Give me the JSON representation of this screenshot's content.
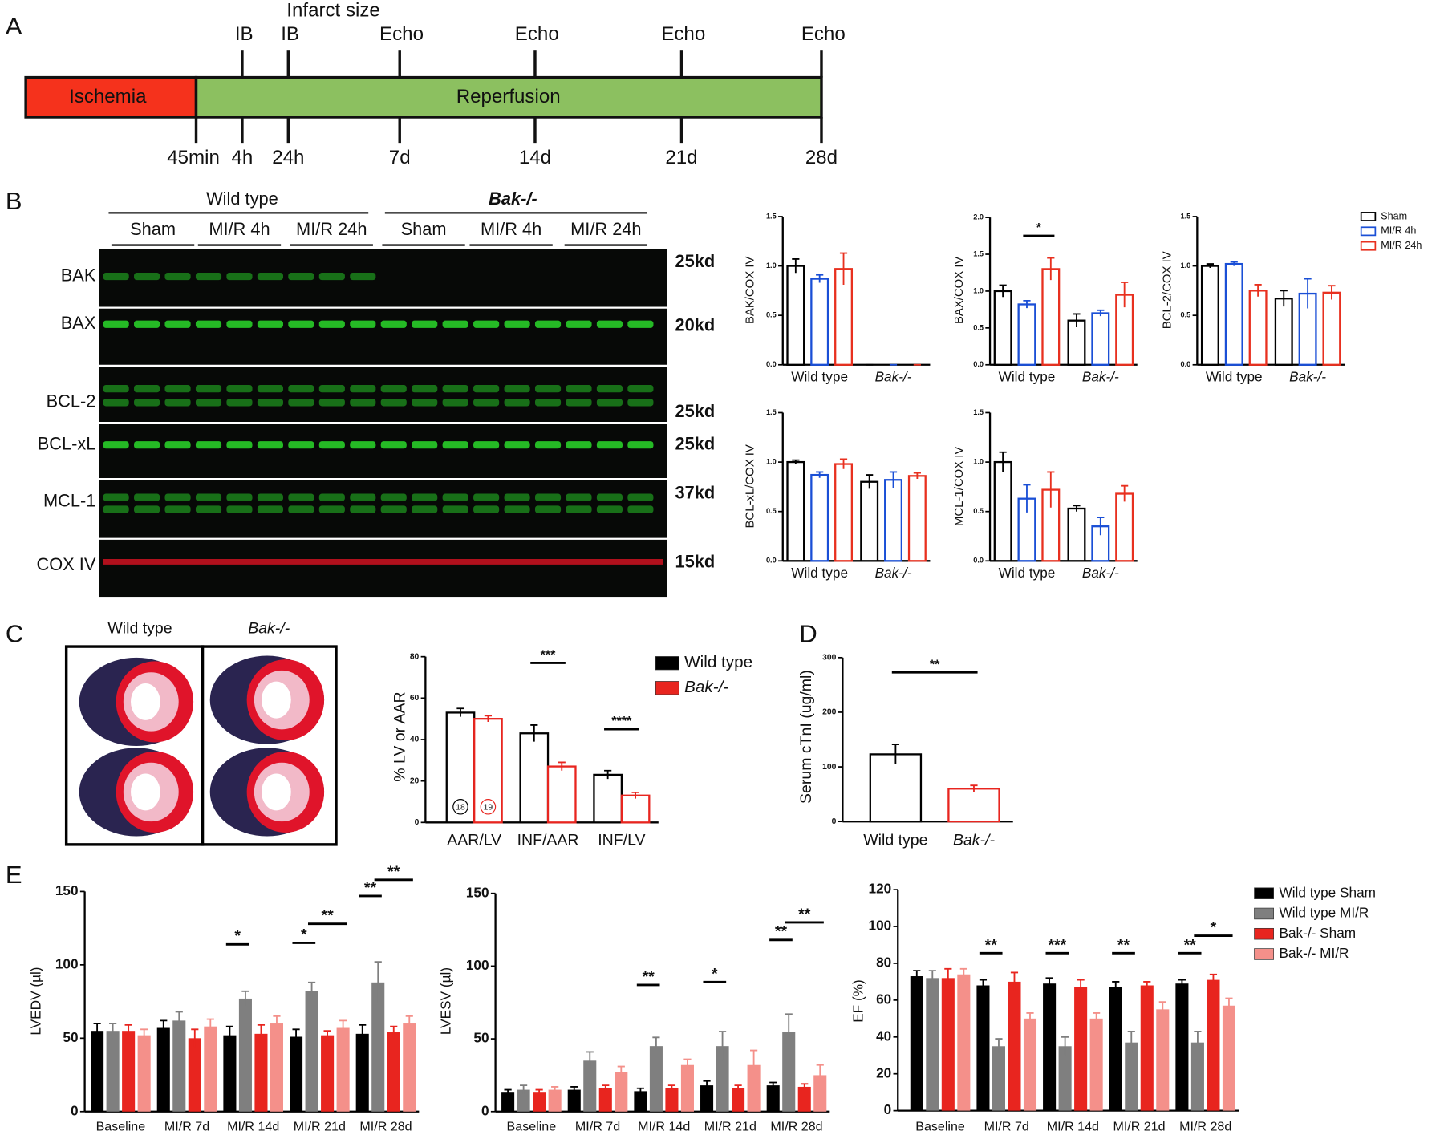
{
  "panel_labels": [
    "A",
    "B",
    "C",
    "D",
    "E"
  ],
  "timeline": {
    "phases": [
      "Ischemia",
      "Reperfusion"
    ],
    "events": [
      "IB",
      "IB",
      "Echo",
      "Echo",
      "Echo",
      "Echo"
    ],
    "event_note": "Infarct size",
    "times": [
      "45min",
      "4h",
      "24h",
      "7d",
      "14d",
      "21d",
      "28d"
    ]
  },
  "blot": {
    "genotypes": [
      "Wild type",
      "Bak-/-"
    ],
    "groups": [
      "Sham",
      "MI/R 4h",
      "MI/R 24h",
      "Sham",
      "MI/R 4h",
      "MI/R 24h"
    ],
    "rows": [
      {
        "name": "BAK",
        "size": "25kd"
      },
      {
        "name": "BAX",
        "size": "20kd"
      },
      {
        "name": "BCL-2",
        "size": "25kd"
      },
      {
        "name": "BCL-xL",
        "size": "25kd"
      },
      {
        "name": "MCL-1",
        "size": "37kd"
      },
      {
        "name": "COX IV",
        "size": "15kd"
      }
    ]
  },
  "staining": {
    "labels": [
      "Wild type",
      "Bak-/-"
    ]
  },
  "chart_data": [
    {
      "type": "bar",
      "ylabel": "BAK/COX IV",
      "categories": [
        "Wild type",
        "Bak-/-"
      ],
      "hollow": true,
      "series": [
        {
          "color": "#000000",
          "values": [
            1.0,
            0
          ],
          "errors": [
            0.07,
            0
          ]
        },
        {
          "color": "#1a4fd6",
          "values": [
            0.87,
            0
          ],
          "errors": [
            0.04,
            0
          ]
        },
        {
          "color": "#e8301f",
          "values": [
            0.97,
            0
          ],
          "errors": [
            0.16,
            0
          ]
        }
      ],
      "ylim": [
        0,
        1.5
      ],
      "yticks": [
        {
          "value": 0,
          "label": "0.0"
        },
        {
          "value": 0.5,
          "label": "0.5"
        },
        {
          "value": 1,
          "label": "1.0"
        },
        {
          "value": 1.5,
          "label": "1.5"
        }
      ]
    },
    {
      "type": "bar",
      "ylabel": "BAX/COX IV",
      "categories": [
        "Wild type",
        "Bak-/-"
      ],
      "hollow": true,
      "series": [
        {
          "color": "#000000",
          "values": [
            1.0,
            0.6
          ],
          "errors": [
            0.08,
            0.09
          ]
        },
        {
          "color": "#1a4fd6",
          "values": [
            0.82,
            0.7
          ],
          "errors": [
            0.05,
            0.04
          ]
        },
        {
          "color": "#e8301f",
          "values": [
            1.3,
            0.95
          ],
          "errors": [
            0.15,
            0.17
          ]
        }
      ],
      "ylim": [
        0,
        2
      ],
      "yticks": [
        {
          "value": 0,
          "label": "0.0"
        },
        {
          "value": 0.5,
          "label": "0.5"
        },
        {
          "value": 1,
          "label": "1.0"
        },
        {
          "value": 1.5,
          "label": "1.5"
        },
        {
          "value": 2,
          "label": "2.0"
        }
      ],
      "annotations": [
        "*"
      ]
    },
    {
      "type": "bar",
      "ylabel": "BCL-2/COX IV",
      "categories": [
        "Wild type",
        "Bak-/-"
      ],
      "hollow": true,
      "legend": "right",
      "series": [
        {
          "name": "Sham",
          "color": "#000000",
          "values": [
            1.0,
            0.67
          ],
          "errors": [
            0.02,
            0.08
          ]
        },
        {
          "name": "MI/R 4h",
          "color": "#1a4fd6",
          "values": [
            1.02,
            0.72
          ],
          "errors": [
            0.02,
            0.15
          ]
        },
        {
          "name": "MI/R 24h",
          "color": "#e8301f",
          "values": [
            0.75,
            0.73
          ],
          "errors": [
            0.06,
            0.07
          ]
        }
      ],
      "ylim": [
        0,
        1.5
      ],
      "yticks": [
        {
          "value": 0,
          "label": "0.0"
        },
        {
          "value": 0.5,
          "label": "0.5"
        },
        {
          "value": 1,
          "label": "1.0"
        },
        {
          "value": 1.5,
          "label": "1.5"
        }
      ]
    },
    {
      "type": "bar",
      "ylabel": "BCL-xL/COX IV",
      "categories": [
        "Wild type",
        "Bak-/-"
      ],
      "hollow": true,
      "series": [
        {
          "color": "#000000",
          "values": [
            1.0,
            0.8
          ],
          "errors": [
            0.02,
            0.07
          ]
        },
        {
          "color": "#1a4fd6",
          "values": [
            0.87,
            0.82
          ],
          "errors": [
            0.03,
            0.08
          ]
        },
        {
          "color": "#e8301f",
          "values": [
            0.98,
            0.86
          ],
          "errors": [
            0.05,
            0.03
          ]
        }
      ],
      "ylim": [
        0,
        1.5
      ],
      "yticks": [
        {
          "value": 0,
          "label": "0.0"
        },
        {
          "value": 0.5,
          "label": "0.5"
        },
        {
          "value": 1,
          "label": "1.0"
        },
        {
          "value": 1.5,
          "label": "1.5"
        }
      ]
    },
    {
      "type": "bar",
      "ylabel": "MCL-1/COX IV",
      "categories": [
        "Wild type",
        "Bak-/-"
      ],
      "hollow": true,
      "series": [
        {
          "color": "#000000",
          "values": [
            1.0,
            0.53
          ],
          "errors": [
            0.1,
            0.03
          ]
        },
        {
          "color": "#1a4fd6",
          "values": [
            0.63,
            0.35
          ],
          "errors": [
            0.14,
            0.09
          ]
        },
        {
          "color": "#e8301f",
          "values": [
            0.72,
            0.68
          ],
          "errors": [
            0.18,
            0.08
          ]
        }
      ],
      "ylim": [
        0,
        1.5
      ],
      "yticks": [
        {
          "value": 0,
          "label": "0.0"
        },
        {
          "value": 0.5,
          "label": "0.5"
        },
        {
          "value": 1,
          "label": "1.0"
        },
        {
          "value": 1.5,
          "label": "1.5"
        }
      ]
    },
    {
      "type": "bar",
      "ylabel": "% LV or AAR",
      "categories": [
        "AAR/LV",
        "INF/AAR",
        "INF/LV"
      ],
      "hollow": true,
      "legend": "right",
      "series": [
        {
          "name": "Wild type",
          "color": "#000000",
          "values": [
            53,
            43,
            23
          ],
          "errors": [
            2,
            4,
            2
          ]
        },
        {
          "name": "Bak-/-",
          "color": "#e8251f",
          "values": [
            50,
            27,
            13
          ],
          "errors": [
            1.5,
            2,
            1.5
          ]
        }
      ],
      "ylim": [
        0,
        80
      ],
      "yticks": [
        0,
        20,
        40,
        60,
        80
      ],
      "annotations": [
        "***",
        "****"
      ],
      "n_labels": [
        "18",
        "19"
      ]
    },
    {
      "type": "bar",
      "ylabel": "Serum cTnI (ug/ml)",
      "categories": [
        "Wild type",
        "Bak-/-"
      ],
      "hollow": true,
      "colors": [
        "#000000",
        "#e8251f"
      ],
      "values": [
        123,
        60
      ],
      "errors": [
        18,
        6
      ],
      "ylim": [
        0,
        300
      ],
      "yticks": [
        0,
        100,
        200,
        300
      ],
      "annotations": [
        "**"
      ]
    },
    {
      "type": "bar",
      "ylabel": "LVEDV (µl)",
      "categories": [
        "Baseline",
        "MI/R 7d",
        "MI/R 14d",
        "MI/R 21d",
        "MI/R 28d"
      ],
      "series": [
        {
          "color": "#000000",
          "values": [
            55,
            57,
            52,
            51,
            53
          ],
          "errors": [
            5,
            5,
            6,
            5,
            6
          ]
        },
        {
          "color": "#7f7f7f",
          "values": [
            55,
            62,
            77,
            82,
            88
          ],
          "errors": [
            5,
            6,
            5,
            6,
            14
          ]
        },
        {
          "color": "#e8251f",
          "values": [
            55,
            50,
            53,
            52,
            54
          ],
          "errors": [
            4,
            6,
            6,
            3,
            4
          ]
        },
        {
          "color": "#f4908a",
          "values": [
            52,
            58,
            60,
            57,
            60
          ],
          "errors": [
            4,
            5,
            5,
            5,
            5
          ]
        }
      ],
      "ylim": [
        0,
        150
      ],
      "yticks": [
        0,
        50,
        100,
        150
      ],
      "annotations": [
        "*",
        "*",
        "**",
        "**",
        "**"
      ]
    },
    {
      "type": "bar",
      "ylabel": "LVESV (µl)",
      "categories": [
        "Baseline",
        "MI/R 7d",
        "MI/R 14d",
        "MI/R 21d",
        "MI/R 28d"
      ],
      "series": [
        {
          "color": "#000000",
          "values": [
            13,
            15,
            14,
            18,
            18
          ],
          "errors": [
            2,
            2,
            2,
            3,
            2
          ]
        },
        {
          "color": "#7f7f7f",
          "values": [
            15,
            35,
            45,
            45,
            55
          ],
          "errors": [
            3,
            6,
            6,
            10,
            12
          ]
        },
        {
          "color": "#e8251f",
          "values": [
            13,
            16,
            16,
            16,
            17
          ],
          "errors": [
            2,
            2,
            2,
            2,
            2
          ]
        },
        {
          "color": "#f4908a",
          "values": [
            15,
            27,
            32,
            32,
            25
          ],
          "errors": [
            2,
            4,
            4,
            10,
            7
          ]
        }
      ],
      "ylim": [
        0,
        150
      ],
      "yticks": [
        0,
        50,
        100,
        150
      ],
      "annotations": [
        "**",
        "*",
        "**",
        "**"
      ]
    },
    {
      "type": "bar",
      "ylabel": "EF (%)",
      "categories": [
        "Baseline",
        "MI/R 7d",
        "MI/R 14d",
        "MI/R 21d",
        "MI/R 28d"
      ],
      "legend": "right",
      "series": [
        {
          "name": "Wild type Sham",
          "color": "#000000",
          "values": [
            73,
            68,
            69,
            67,
            69
          ],
          "errors": [
            3,
            3,
            3,
            3,
            2
          ]
        },
        {
          "name": "Wild type MI/R",
          "color": "#7f7f7f",
          "values": [
            72,
            35,
            35,
            37,
            37
          ],
          "errors": [
            4,
            4,
            5,
            6,
            6
          ]
        },
        {
          "name": "Bak-/- Sham",
          "color": "#e8251f",
          "values": [
            72,
            70,
            67,
            68,
            71
          ],
          "errors": [
            5,
            5,
            4,
            2,
            3
          ]
        },
        {
          "name": "Bak-/- MI/R",
          "color": "#f4908a",
          "values": [
            74,
            50,
            50,
            55,
            57
          ],
          "errors": [
            3,
            3,
            3,
            4,
            4
          ]
        }
      ],
      "ylim": [
        0,
        120
      ],
      "yticks": [
        0,
        20,
        40,
        60,
        80,
        100,
        120
      ],
      "annotations": [
        "**",
        "***",
        "**",
        "**",
        "*"
      ]
    }
  ]
}
